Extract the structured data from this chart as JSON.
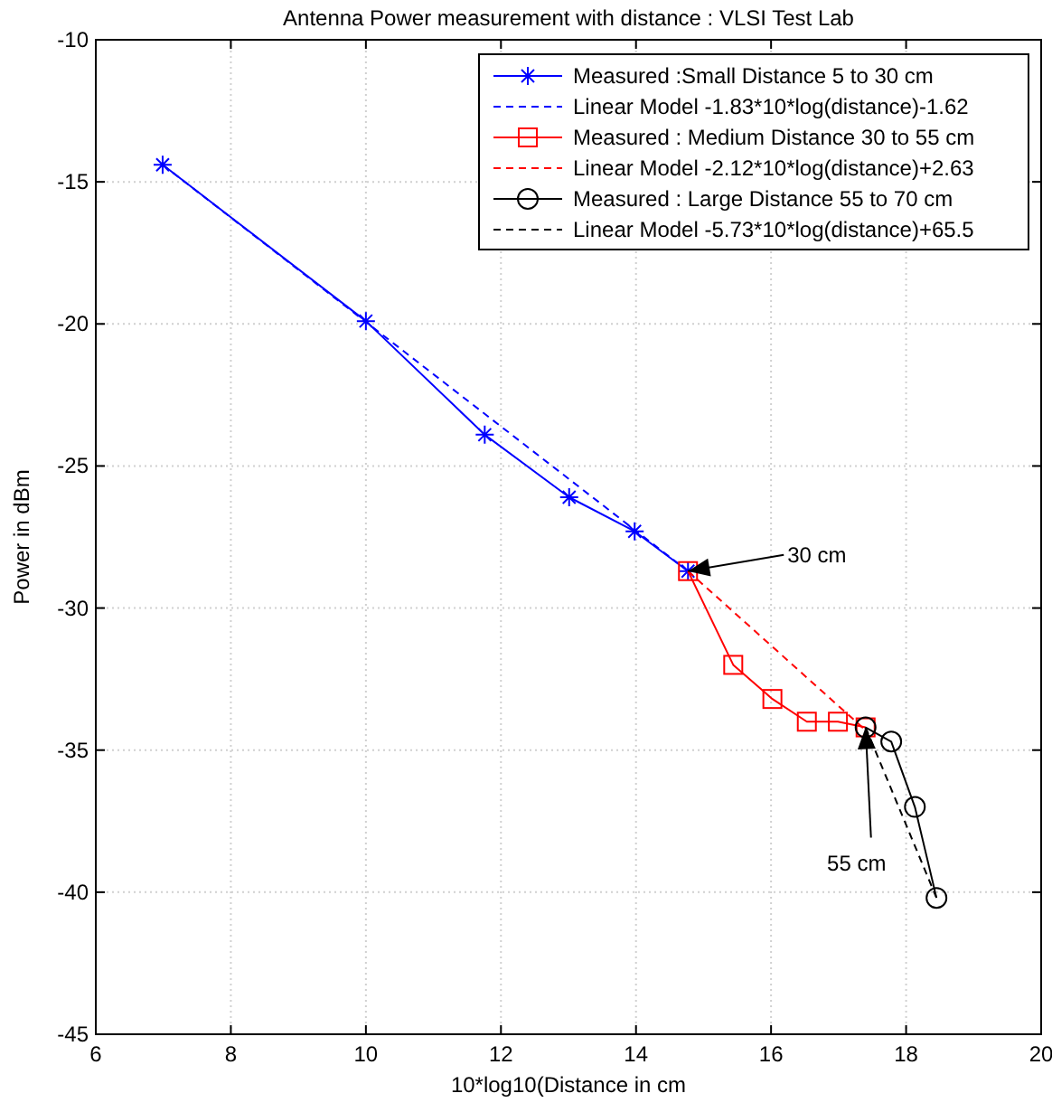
{
  "chart_data": {
    "type": "line",
    "title": "Antenna Power measurement with distance : VLSI Test Lab",
    "xlabel": "10*log10(Distance in cm",
    "ylabel": "Power in dBm",
    "xlim": [
      6,
      20
    ],
    "xticks": [
      6,
      8,
      10,
      12,
      14,
      16,
      18,
      20
    ],
    "ylim": [
      -45,
      -10
    ],
    "yticks": [
      -45,
      -40,
      -35,
      -30,
      -25,
      -20,
      -15,
      -10
    ],
    "grid": true,
    "legend": "top right",
    "series": [
      {
        "name": "Measured :Small Distance 5 to 30 cm",
        "color": "#0000ff",
        "marker": "cross",
        "line_style": "solid",
        "x": [
          6.99,
          10,
          11.76,
          13.01,
          13.98,
          14.77
        ],
        "values": [
          -14.4,
          -19.9,
          -23.9,
          -26.1,
          -27.3,
          -28.7
        ]
      },
      {
        "name": "Linear Model -1.83*10*log(distance)-1.62",
        "color": "#0000ff",
        "marker": "none",
        "line_style": "dashed",
        "x": [
          6.99,
          14.77
        ],
        "values": [
          -14.4,
          -28.7
        ]
      },
      {
        "name": "Measured : Medium Distance  30 to 55 cm",
        "color": "#ff0000",
        "marker": "square",
        "line_style": "solid",
        "x": [
          14.77,
          15.44,
          16.02,
          16.53,
          16.99,
          17.4
        ],
        "values": [
          -28.7,
          -32.0,
          -33.2,
          -34.0,
          -34.0,
          -34.2
        ]
      },
      {
        "name": "Linear Model -2.12*10*log(distance)+2.63",
        "color": "#ff0000",
        "marker": "none",
        "line_style": "dashed",
        "x": [
          14.77,
          17.4
        ],
        "values": [
          -28.7,
          -34.3
        ]
      },
      {
        "name": "Measured : Large Distance  55 to 70 cm",
        "color": "#000000",
        "marker": "circle",
        "line_style": "solid",
        "x": [
          17.4,
          17.78,
          18.13,
          18.45
        ],
        "values": [
          -34.2,
          -34.7,
          -37.0,
          -40.2
        ]
      },
      {
        "name": "Linear Model -5.73*10*log(distance)+65.5",
        "color": "#000000",
        "marker": "none",
        "line_style": "dashed",
        "x": [
          17.4,
          18.45
        ],
        "values": [
          -34.2,
          -40.2
        ]
      }
    ],
    "annotations": [
      {
        "text": "30 cm",
        "x": 14.77,
        "y": -28.7
      },
      {
        "text": "55 cm",
        "x": 17.4,
        "y": -34.2
      }
    ]
  }
}
